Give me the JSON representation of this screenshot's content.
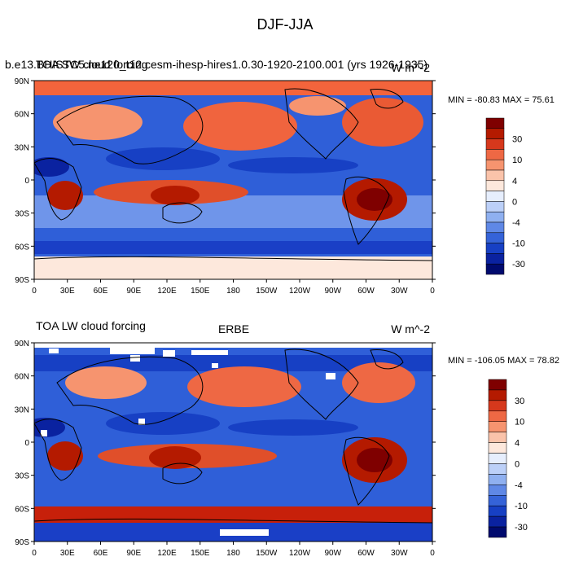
{
  "title": "DJF-JJA",
  "panels": [
    {
      "left_title": "TOA SW cloud forcing",
      "case_title": "b.e13.BHISTC5.ne120_t12.cesm-ihesp-hires1.0.30-1920-2100.001 (yrs 1926-1935)",
      "units": "W m^-2",
      "minmax": "MIN = -80.83 MAX =  75.61"
    },
    {
      "left_title": "TOA LW cloud forcing",
      "center_title": "ERBE",
      "units": "W m^-2",
      "minmax": "MIN = -106.05 MAX =  78.82"
    }
  ],
  "lat_labels": [
    "90N",
    "60N",
    "30N",
    "0",
    "30S",
    "60S",
    "90S"
  ],
  "lon_labels": [
    "0",
    "30E",
    "60E",
    "90E",
    "120E",
    "150E",
    "180",
    "150W",
    "120W",
    "90W",
    "60W",
    "30W",
    "0"
  ],
  "colorbar": {
    "labels": [
      "30",
      "10",
      "4",
      "0",
      "-4",
      "-10",
      "-30"
    ],
    "colors": [
      "#7f0000",
      "#b41a00",
      "#d6381c",
      "#ee6844",
      "#f6946f",
      "#fac3aa",
      "#fde8dc",
      "#e6eefd",
      "#bcd0f8",
      "#8fb0f0",
      "#5f88e6",
      "#3563d8",
      "#1740c4",
      "#0a22a0",
      "#000a6e"
    ]
  },
  "colors": {
    "ocean_blue": "#2f5fd8",
    "land_outline": "#000000",
    "missing": "#ffffff"
  }
}
